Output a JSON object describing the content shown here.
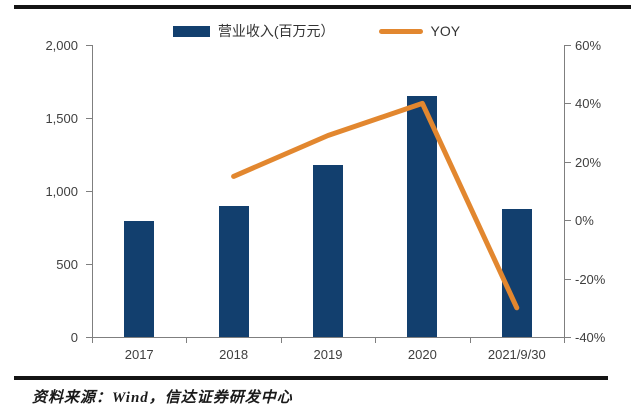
{
  "legend": {
    "revenue_label": "营业收入(百万元）",
    "yoy_label": "YOY"
  },
  "colors": {
    "bar": "#123F6E",
    "line": "#E2872F",
    "axis": "#7F7F7F",
    "text": "#3F3F3F",
    "rule": "#141414"
  },
  "chart_data": {
    "type": "bar",
    "subtype": "bar+line combo, dual axis",
    "categories": [
      "2017",
      "2018",
      "2019",
      "2020",
      "2021/9/30"
    ],
    "series": [
      {
        "name": "营业收入(百万元)",
        "type": "bar",
        "axis": "left",
        "values": [
          795,
          900,
          1175,
          1650,
          880
        ]
      },
      {
        "name": "YOY",
        "type": "line",
        "axis": "right",
        "values": [
          null,
          15,
          29,
          40,
          -30
        ]
      }
    ],
    "left_axis": {
      "min": 0,
      "max": 2000,
      "ticks": [
        {
          "value": 2000,
          "label": "2,000"
        },
        {
          "value": 1500,
          "label": "1,500"
        },
        {
          "value": 1000,
          "label": "1,000"
        },
        {
          "value": 500,
          "label": "500"
        },
        {
          "value": 0,
          "label": "0"
        }
      ]
    },
    "right_axis": {
      "min": -40,
      "max": 60,
      "ticks": [
        {
          "value": 60,
          "label": "60%"
        },
        {
          "value": 40,
          "label": "40%"
        },
        {
          "value": 20,
          "label": "20%"
        },
        {
          "value": 0,
          "label": "0%"
        },
        {
          "value": -20,
          "label": "-20%"
        },
        {
          "value": -40,
          "label": "-40%"
        }
      ]
    },
    "grid": false,
    "legend_position": "top-center"
  },
  "source": {
    "text": "资料来源：Wind，信达证券研发中心"
  }
}
